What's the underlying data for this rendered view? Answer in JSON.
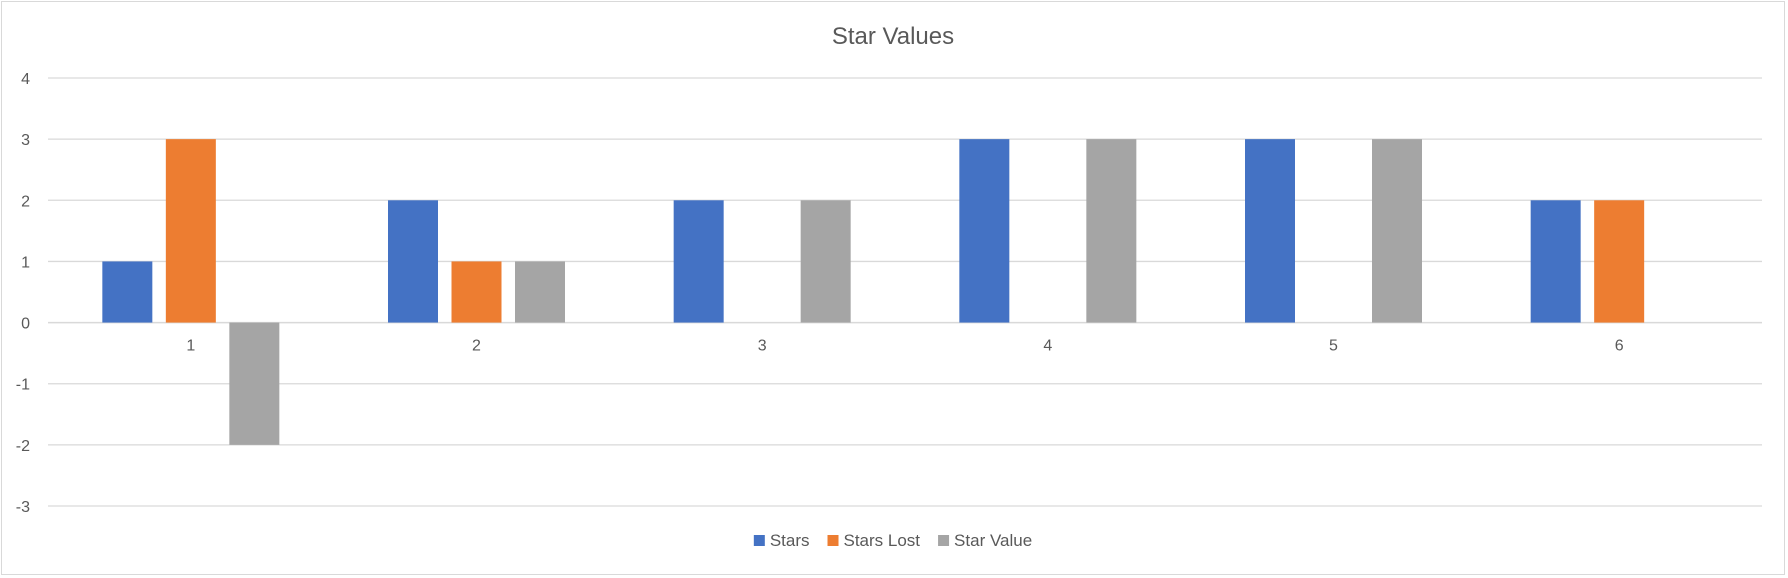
{
  "chart_data": {
    "type": "bar",
    "title": "Star Values",
    "categories": [
      "1",
      "2",
      "3",
      "4",
      "5",
      "6"
    ],
    "series": [
      {
        "name": "Stars",
        "color": "#4472c4",
        "values": [
          1,
          2,
          2,
          3,
          3,
          2
        ]
      },
      {
        "name": "Stars Lost",
        "color": "#ed7d31",
        "values": [
          3,
          1,
          0,
          0,
          0,
          2
        ]
      },
      {
        "name": "Star Value",
        "color": "#a5a5a5",
        "values": [
          -2,
          1,
          2,
          3,
          3,
          0
        ]
      }
    ],
    "y_ticks": [
      "4",
      "3",
      "2",
      "1",
      "0",
      "-1",
      "-2",
      "-3"
    ],
    "ylim": [
      -3,
      4
    ],
    "xlabel": "",
    "ylabel": "",
    "grid": true,
    "legend_position": "bottom"
  }
}
